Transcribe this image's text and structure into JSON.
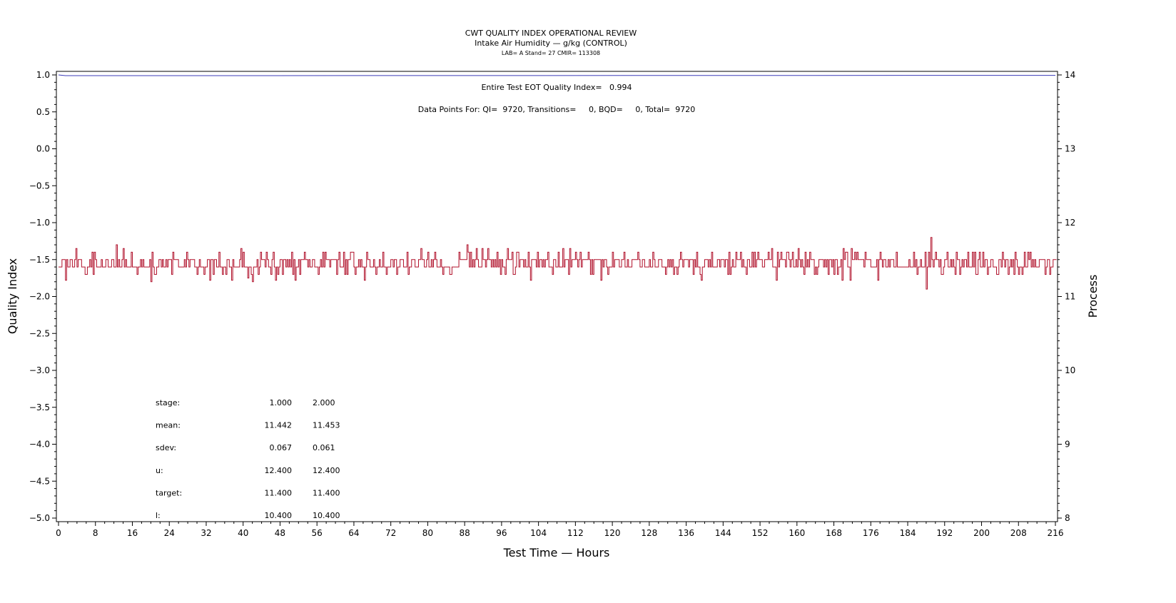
{
  "chart_data": {
    "type": "line",
    "title": "CWT QUALITY INDEX OPERATIONAL REVIEW",
    "subtitle": "Intake Air Humidity — g/kg (CONTROL)",
    "info_line": "LAB= A Stand= 27 CMIR= 113308",
    "xlabel": "Test Time — Hours",
    "ylabel_left": "Quality Index",
    "ylabel_right": "Process",
    "xlim": [
      0,
      216
    ],
    "ylim_left": [
      -5.0,
      1.0
    ],
    "ylim_right": [
      8,
      14
    ],
    "x_ticks": [
      "0",
      "8",
      "16",
      "24",
      "32",
      "40",
      "48",
      "56",
      "64",
      "72",
      "80",
      "88",
      "96",
      "104",
      "112",
      "120",
      "128",
      "136",
      "144",
      "152",
      "160",
      "168",
      "176",
      "184",
      "192",
      "200",
      "208",
      "216"
    ],
    "y_left_ticks": [
      "1.0",
      "0.5",
      "0.0",
      "−0.5",
      "−1.0",
      "−1.5",
      "−2.0",
      "−2.5",
      "−3.0",
      "−3.5",
      "−4.0",
      "−4.5",
      "−5.0"
    ],
    "y_right_ticks": [
      "14",
      "13",
      "12",
      "11",
      "10",
      "9",
      "8"
    ],
    "annotations": {
      "quality_index": "Entire Test EOT Quality Index=   0.994",
      "data_points": "Data Points For: QI=  9720, Transitions=     0, BQD=     0, Total=  9720"
    },
    "stats_table": [
      [
        "stage:",
        "1.000",
        "2.000"
      ],
      [
        "mean:",
        "11.442",
        "11.453"
      ],
      [
        "sdev:",
        "0.067",
        "0.061"
      ],
      [
        "u:",
        "12.400",
        "12.400"
      ],
      [
        "target:",
        "11.400",
        "11.400"
      ],
      [
        "l:",
        "10.400",
        "10.400"
      ]
    ],
    "series": [
      {
        "axis": "left",
        "color": "#3b3bb8",
        "x": [
          0,
          1.5,
          216
        ],
        "y": [
          1.0,
          0.99,
          0.994
        ]
      },
      {
        "axis": "right",
        "color": "#b0102a",
        "mean": 11.44,
        "band": [
          11.4,
          11.5
        ],
        "x": [
          12.5,
          14,
          20,
          41,
          42,
          88.5,
          188,
          189,
          190
        ],
        "y": [
          11.7,
          11.65,
          11.2,
          11.25,
          11.2,
          11.7,
          11.1,
          11.8,
          11.6
        ]
      }
    ],
    "grid": false,
    "legend": "none"
  }
}
